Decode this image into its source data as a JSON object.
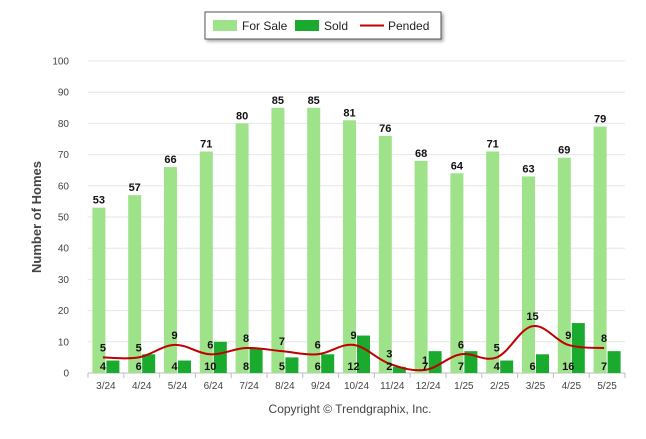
{
  "chart_data": {
    "type": "bar",
    "ylabel": "Number of Homes",
    "xlabel": "",
    "ylim": [
      0,
      100
    ],
    "yticks": [
      0,
      10,
      20,
      30,
      40,
      50,
      60,
      70,
      80,
      90,
      100
    ],
    "grid": true,
    "legend_position": "top-center",
    "categories": [
      "3/24",
      "4/24",
      "5/24",
      "6/24",
      "7/24",
      "8/24",
      "9/24",
      "10/24",
      "11/24",
      "12/24",
      "1/25",
      "2/25",
      "3/25",
      "4/25",
      "5/25"
    ],
    "series": [
      {
        "name": "For Sale",
        "type": "bar",
        "color": "#9ee28a",
        "values": [
          53,
          57,
          66,
          71,
          80,
          85,
          85,
          81,
          76,
          68,
          64,
          71,
          63,
          69,
          79
        ]
      },
      {
        "name": "Sold",
        "type": "bar",
        "color": "#1aaa2e",
        "values": [
          4,
          6,
          4,
          10,
          8,
          5,
          6,
          12,
          2,
          7,
          7,
          4,
          6,
          16,
          7
        ]
      },
      {
        "name": "Pended",
        "type": "line",
        "color": "#c00000",
        "values": [
          5,
          5,
          9,
          6,
          8,
          7,
          6,
          9,
          3,
          1,
          6,
          5,
          15,
          9,
          8
        ]
      }
    ]
  },
  "footer": {
    "copyright": "Copyright © Trendgraphix, Inc."
  }
}
